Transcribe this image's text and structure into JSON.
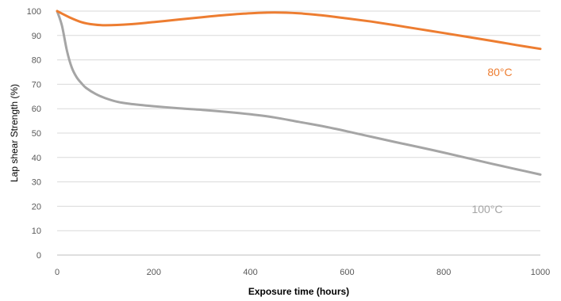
{
  "chart_data": {
    "type": "line",
    "xlabel": "Exposure time (hours)",
    "ylabel": "Lap shear Strength (%)",
    "xlim": [
      0,
      1000
    ],
    "ylim": [
      0,
      100
    ],
    "x_ticks": [
      0,
      200,
      400,
      600,
      800,
      1000
    ],
    "y_ticks": [
      0,
      10,
      20,
      30,
      40,
      50,
      60,
      70,
      80,
      90,
      100
    ],
    "grid": "horizontal",
    "series": [
      {
        "name": "80°C",
        "color": "#ED7D31",
        "x": [
          0,
          25,
          50,
          75,
          100,
          150,
          200,
          250,
          300,
          350,
          400,
          450,
          500,
          550,
          600,
          650,
          700,
          750,
          800,
          850,
          900,
          950,
          1000
        ],
        "y": [
          100,
          97.5,
          95.5,
          94.5,
          94.2,
          94.6,
          95.5,
          96.5,
          97.5,
          98.4,
          99.1,
          99.4,
          99.1,
          98.2,
          97,
          95.7,
          94.2,
          92.6,
          91,
          89.4,
          87.8,
          86.1,
          84.5
        ]
      },
      {
        "name": "100°C",
        "color": "#A5A5A5",
        "x": [
          0,
          10,
          20,
          30,
          40,
          50,
          60,
          80,
          100,
          125,
          150,
          200,
          250,
          300,
          350,
          400,
          450,
          500,
          550,
          600,
          650,
          700,
          750,
          800,
          850,
          900,
          950,
          1000
        ],
        "y": [
          100,
          94,
          84,
          77,
          73,
          70.5,
          68.5,
          66,
          64.3,
          62.8,
          62,
          61,
          60.2,
          59.5,
          58.7,
          57.7,
          56.4,
          54.6,
          52.8,
          50.7,
          48.5,
          46.3,
          44.2,
          42,
          39.7,
          37.4,
          35.2,
          33
        ]
      }
    ]
  }
}
